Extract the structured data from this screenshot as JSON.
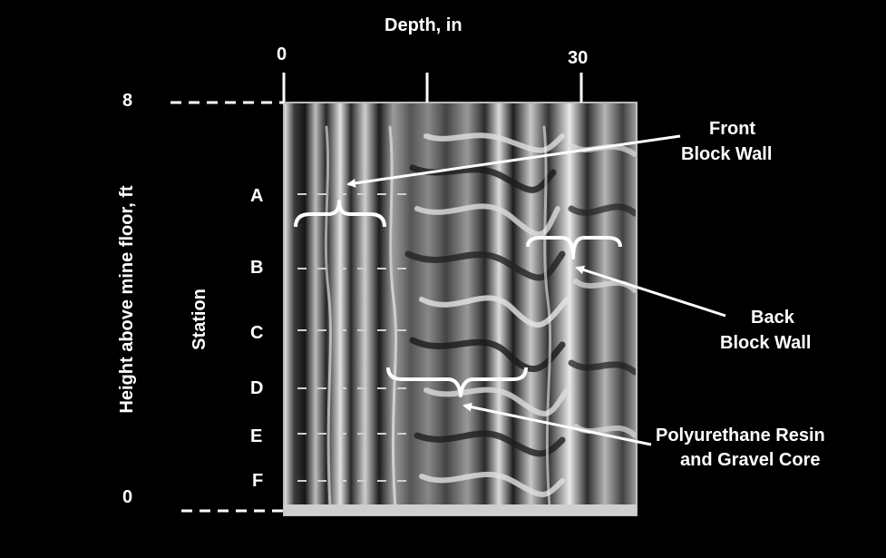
{
  "axis_top": {
    "label": "Depth, in",
    "ticks": [
      "0",
      "30"
    ]
  },
  "axis_left": {
    "label": "Height above mine floor, ft",
    "ticks": [
      "8",
      "0"
    ]
  },
  "station": {
    "label": "Station",
    "items": [
      "A",
      "B",
      "C",
      "D",
      "E",
      "F"
    ]
  },
  "annotations": {
    "front_wall": [
      "Front",
      "Block Wall"
    ],
    "back_wall": [
      "Back",
      "Block Wall"
    ],
    "core": [
      "Polyurethane Resin",
      "and Gravel Core"
    ]
  },
  "colors": {
    "background": "#000000",
    "text": "#ffffff",
    "radargram_light": "#e6e6e6",
    "radargram_dark": "#1a1a1a"
  }
}
